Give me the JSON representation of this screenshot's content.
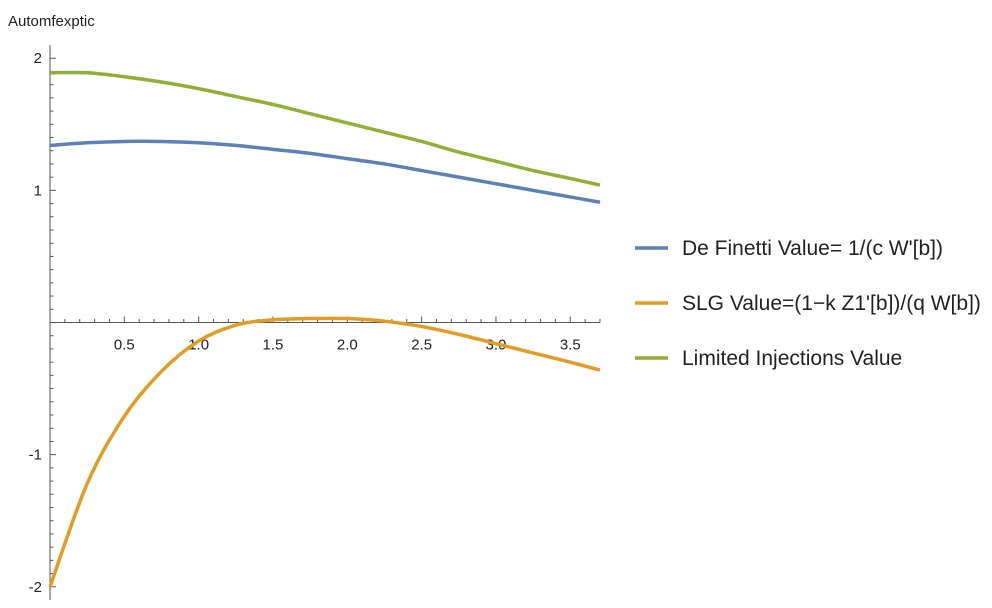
{
  "chart_data": {
    "type": "line",
    "title": "Automfexptic",
    "xlabel": "",
    "ylabel": "",
    "xlim": [
      0.0,
      3.7
    ],
    "ylim": [
      -2.1,
      2.1
    ],
    "xticks": [
      0.5,
      1.0,
      1.5,
      2.0,
      2.5,
      3.0,
      3.5
    ],
    "xtick_labels": [
      "0.5",
      "1.0",
      "1.5",
      "2.0",
      "2.5",
      "3.0",
      "3.5"
    ],
    "yticks": [
      -2,
      -1,
      1,
      2
    ],
    "ytick_labels": [
      "-2",
      "-1",
      "1",
      "2"
    ],
    "grid": false,
    "legend_position": "right",
    "x": [
      0.0,
      0.25,
      0.5,
      0.75,
      1.0,
      1.25,
      1.5,
      1.75,
      2.0,
      2.25,
      2.5,
      2.75,
      3.0,
      3.25,
      3.5,
      3.7
    ],
    "series": [
      {
        "name": "De Finetti Value= 1/(c W'[b])",
        "color": "#5E81B5",
        "values": [
          1.34,
          1.36,
          1.37,
          1.37,
          1.36,
          1.34,
          1.31,
          1.28,
          1.24,
          1.2,
          1.15,
          1.1,
          1.05,
          1.0,
          0.95,
          0.91
        ]
      },
      {
        "name": "SLG Value=(1−k Z1'[b])/(q W[b])",
        "color": "#E19C24",
        "values": [
          -2.0,
          -1.22,
          -0.71,
          -0.37,
          -0.14,
          -0.02,
          0.02,
          0.03,
          0.03,
          0.01,
          -0.03,
          -0.09,
          -0.16,
          -0.23,
          -0.3,
          -0.36
        ]
      },
      {
        "name": "Limited Injections Value",
        "color": "#8FB032",
        "values": [
          1.89,
          1.89,
          1.86,
          1.82,
          1.77,
          1.71,
          1.65,
          1.58,
          1.51,
          1.44,
          1.37,
          1.29,
          1.22,
          1.15,
          1.09,
          1.04
        ]
      }
    ]
  }
}
